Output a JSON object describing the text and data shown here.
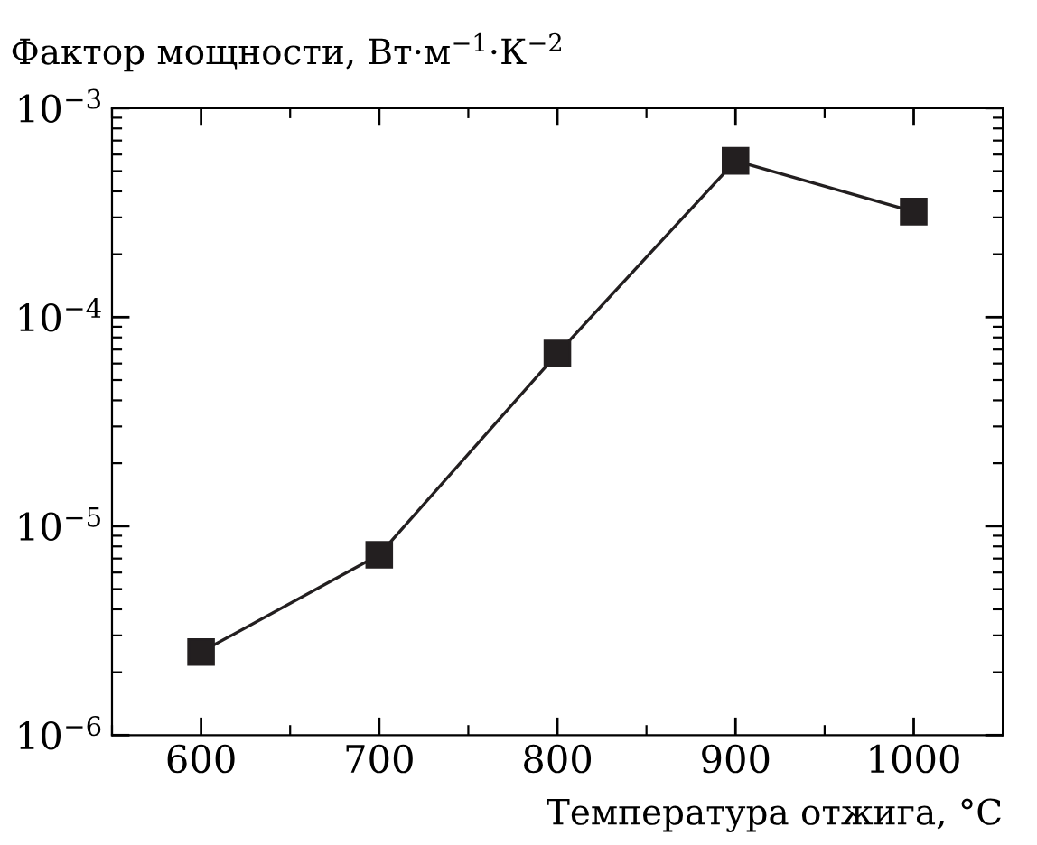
{
  "chart_data": {
    "type": "line",
    "ylabel": "Фактор мощности, Вт·м$^{−1}$·К$^{−2}$",
    "xlabel": "Температура отжига, °C",
    "x": [
      600,
      700,
      800,
      900,
      1000
    ],
    "series": [
      {
        "color": "#231f20",
        "values": [
          2.5e-06,
          7.3e-06,
          6.7e-05,
          0.00056,
          0.00032
        ]
      }
    ],
    "log": "y",
    "xlim": [
      550,
      1050
    ],
    "xticks": [
      600,
      700,
      800,
      900,
      1000
    ],
    "ylim": [
      1e-06,
      0.001
    ],
    "yticks": [
      {
        "value": 1e-06,
        "label": "10$^{−6}$"
      },
      {
        "value": 1e-05,
        "label": "10$^{−5}$"
      },
      {
        "value": 0.0001,
        "label": "10$^{−4}$"
      },
      {
        "value": 0.001,
        "label": "10$^{−3}$"
      }
    ],
    "marker": "square",
    "line_style": "solid",
    "grid": false,
    "legend": false
  }
}
